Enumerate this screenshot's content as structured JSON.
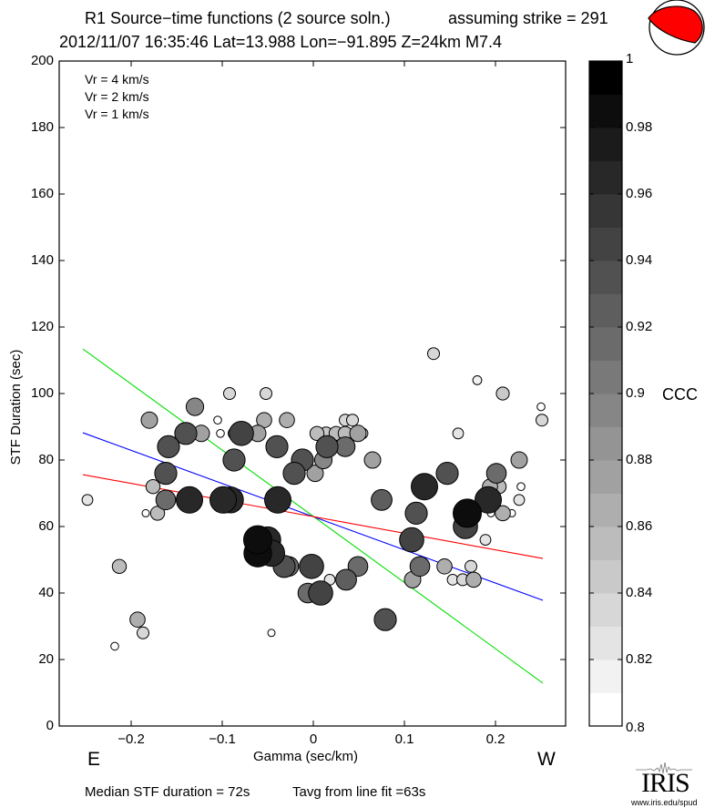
{
  "header": {
    "title_line1": "R1 Source−time functions (2 source soln.)",
    "strike_label": "assuming strike = 291",
    "title_line2": "2012/11/07 16:35:46  Lat=13.988 Lon=−91.895  Z=24km  M7.4"
  },
  "beachball": {
    "fill_color": "#ff0000",
    "icon": "focal-mechanism-beachball-icon"
  },
  "footer": {
    "median_text": "Median STF duration = 72s",
    "tavg_text": "Tavg from line fit =63s"
  },
  "logo": {
    "text": "IRIS",
    "url_text": "www.iris.edu/spud"
  },
  "chart_data": {
    "type": "scatter",
    "title": "R1 Source−time functions (2 source soln.)",
    "xlabel": "Gamma (sec/km)",
    "ylabel": "STF Duration (sec)",
    "xlim": [
      -0.279,
      0.277
    ],
    "ylim": [
      0,
      200
    ],
    "grid": false,
    "direction_labels": {
      "left": "E",
      "right": "W"
    },
    "x_ticks": [
      {
        "value": -0.2,
        "label": "−0.2"
      },
      {
        "value": -0.1,
        "label": "−0.1"
      },
      {
        "value": 0,
        "label": "0"
      },
      {
        "value": 0.1,
        "label": "0.1"
      },
      {
        "value": 0.2,
        "label": "0.2"
      }
    ],
    "y_ticks": [
      {
        "value": 0,
        "label": "0"
      },
      {
        "value": 20,
        "label": "20"
      },
      {
        "value": 40,
        "label": "40"
      },
      {
        "value": 60,
        "label": "60"
      },
      {
        "value": 80,
        "label": "80"
      },
      {
        "value": 100,
        "label": "100"
      },
      {
        "value": 120,
        "label": "120"
      },
      {
        "value": 140,
        "label": "140"
      },
      {
        "value": 160,
        "label": "160"
      },
      {
        "value": 180,
        "label": "180"
      },
      {
        "value": 200,
        "label": "200"
      }
    ],
    "legend_position": "top-left",
    "lines": [
      {
        "name": "Vr = 4 km/s",
        "color": "#00e000",
        "x": [
          -0.253,
          0.252
        ],
        "y": [
          113.4,
          12.9
        ]
      },
      {
        "name": "Vr = 2 km/s",
        "color": "#0000ff",
        "x": [
          -0.253,
          0.252
        ],
        "y": [
          88.2,
          37.8
        ]
      },
      {
        "name": "Vr = 1 km/s",
        "color": "#ff0000",
        "x": [
          -0.253,
          0.252
        ],
        "y": [
          75.6,
          50.4
        ]
      }
    ],
    "colorbar": {
      "label": "CCC",
      "range": [
        0.8,
        1.0
      ],
      "steps": 20,
      "ticks": [
        {
          "value": 1.0,
          "label": "1"
        },
        {
          "value": 0.98,
          "label": "0.98"
        },
        {
          "value": 0.96,
          "label": "0.96"
        },
        {
          "value": 0.94,
          "label": "0.94"
        },
        {
          "value": 0.92,
          "label": "0.92"
        },
        {
          "value": 0.9,
          "label": "0.9"
        },
        {
          "value": 0.88,
          "label": "0.88"
        },
        {
          "value": 0.86,
          "label": "0.86"
        },
        {
          "value": 0.84,
          "label": "0.84"
        },
        {
          "value": 0.82,
          "label": "0.82"
        },
        {
          "value": 0.8,
          "label": "0.8"
        }
      ]
    },
    "points_fields": [
      "gamma",
      "stf",
      "ccc"
    ],
    "points": [
      [
        -0.248,
        68,
        0.83
      ],
      [
        -0.213,
        48,
        0.86
      ],
      [
        -0.193,
        32,
        0.87
      ],
      [
        -0.187,
        28,
        0.84
      ],
      [
        -0.218,
        24,
        0.805
      ],
      [
        -0.18,
        92,
        0.88
      ],
      [
        -0.13,
        96,
        0.89
      ],
      [
        -0.092,
        100,
        0.84
      ],
      [
        -0.052,
        100,
        0.84
      ],
      [
        -0.14,
        88,
        0.93
      ],
      [
        -0.123,
        88,
        0.88
      ],
      [
        -0.105,
        92,
        0.805
      ],
      [
        -0.102,
        88,
        0.805
      ],
      [
        -0.159,
        84,
        0.93
      ],
      [
        -0.162,
        76,
        0.93
      ],
      [
        -0.176,
        72,
        0.86
      ],
      [
        -0.162,
        68,
        0.91
      ],
      [
        -0.171,
        64,
        0.86
      ],
      [
        -0.184,
        64,
        0.8
      ],
      [
        -0.079,
        88,
        0.95
      ],
      [
        -0.087,
        88,
        0.84
      ],
      [
        -0.081,
        88,
        0.86
      ],
      [
        -0.061,
        88,
        0.88
      ],
      [
        -0.054,
        92,
        0.87
      ],
      [
        -0.029,
        92,
        0.87
      ],
      [
        -0.087,
        80,
        0.93
      ],
      [
        -0.04,
        84,
        0.93
      ],
      [
        -0.012,
        80,
        0.93
      ],
      [
        0.011,
        80,
        0.89
      ],
      [
        -0.021,
        76,
        0.93
      ],
      [
        0.002,
        76,
        0.88
      ],
      [
        0.035,
        84,
        0.91
      ],
      [
        0.004,
        88,
        0.86
      ],
      [
        0.014,
        88,
        0.85
      ],
      [
        0.025,
        88,
        0.86
      ],
      [
        0.035,
        88,
        0.86
      ],
      [
        0.049,
        88,
        0.88
      ],
      [
        0.054,
        88,
        0.83
      ],
      [
        0.035,
        92,
        0.84
      ],
      [
        0.043,
        92,
        0.84
      ],
      [
        0.015,
        84,
        0.93
      ],
      [
        0.065,
        80,
        0.88
      ],
      [
        -0.136,
        68,
        0.97
      ],
      [
        -0.091,
        68,
        0.965
      ],
      [
        -0.099,
        68,
        0.97
      ],
      [
        -0.039,
        68,
        0.97
      ],
      [
        -0.05,
        56,
        0.965
      ],
      [
        -0.046,
        52,
        0.97
      ],
      [
        -0.061,
        52,
        0.98
      ],
      [
        -0.061,
        56,
        0.985
      ],
      [
        -0.032,
        48,
        0.93
      ],
      [
        -0.027,
        48,
        0.91
      ],
      [
        -0.002,
        48,
        0.95
      ],
      [
        -0.006,
        48,
        0.87
      ],
      [
        0.049,
        48,
        0.91
      ],
      [
        0.018,
        44,
        0.83
      ],
      [
        0.036,
        44,
        0.92
      ],
      [
        0.008,
        40,
        0.95
      ],
      [
        -0.006,
        40,
        0.91
      ],
      [
        -0.046,
        28,
        0.8
      ],
      [
        0.079,
        32,
        0.93
      ],
      [
        0.132,
        112,
        0.84
      ],
      [
        0.18,
        104,
        0.815
      ],
      [
        0.208,
        100,
        0.85
      ],
      [
        0.25,
        96,
        0.805
      ],
      [
        0.251,
        92,
        0.84
      ],
      [
        0.159,
        88,
        0.83
      ],
      [
        0.226,
        80,
        0.88
      ],
      [
        0.147,
        76,
        0.93
      ],
      [
        0.122,
        72,
        0.97
      ],
      [
        0.201,
        76,
        0.91
      ],
      [
        0.194,
        72,
        0.87
      ],
      [
        0.204,
        72,
        0.86
      ],
      [
        0.228,
        72,
        0.805
      ],
      [
        0.226,
        68,
        0.83
      ],
      [
        0.075,
        68,
        0.92
      ],
      [
        0.113,
        64,
        0.93
      ],
      [
        0.108,
        56,
        0.95
      ],
      [
        0.117,
        48,
        0.91
      ],
      [
        0.109,
        44,
        0.88
      ],
      [
        0.144,
        48,
        0.87
      ],
      [
        0.173,
        48,
        0.84
      ],
      [
        0.176,
        44,
        0.87
      ],
      [
        0.153,
        44,
        0.83
      ],
      [
        0.164,
        44,
        0.84
      ],
      [
        0.189,
        56,
        0.83
      ],
      [
        0.192,
        68,
        0.97
      ],
      [
        0.167,
        60,
        0.95
      ],
      [
        0.169,
        64,
        0.985
      ],
      [
        0.208,
        64,
        0.87
      ],
      [
        0.195,
        64,
        0.8
      ],
      [
        0.218,
        64,
        0.8
      ]
    ]
  }
}
